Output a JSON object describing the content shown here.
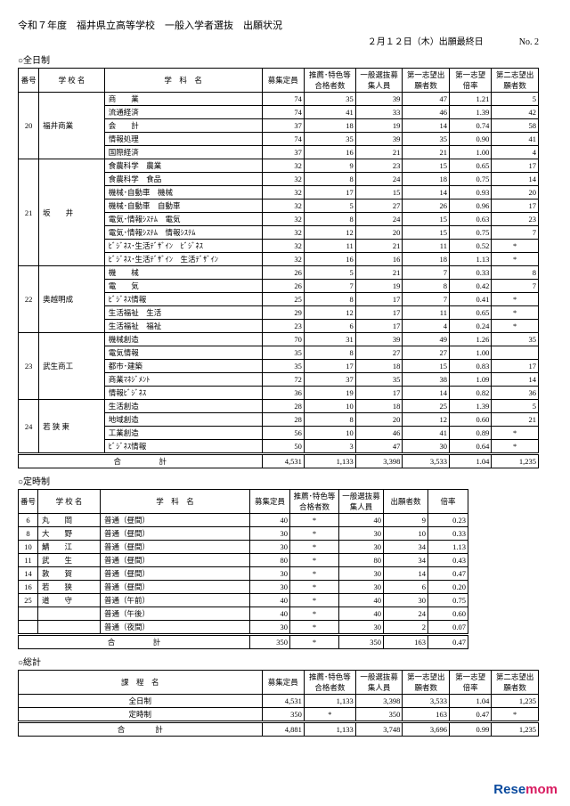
{
  "header": {
    "title": "令和７年度　福井県立高等学校　一般入学者選抜　出願状況",
    "date_line": "２月１２日（木）出願最終日　　　　No. 2"
  },
  "full_time": {
    "label": "○全日制",
    "head": [
      "番号",
      "学 校 名",
      "学　科　名",
      "募集定員",
      "推薦･特色等合格者数",
      "一般選抜募集人員",
      "第一志望出願者数",
      "第一志望倍率",
      "第二志望出願者数"
    ],
    "blocks": [
      {
        "no": "20",
        "school": "福井商業",
        "rows": [
          {
            "dept": "商　　業",
            "a": 74,
            "b": 35,
            "c": 39,
            "d": 47,
            "e": "1.21",
            "f": "5"
          },
          {
            "dept": "流通経済",
            "a": 74,
            "b": 41,
            "c": 33,
            "d": 46,
            "e": "1.39",
            "f": "42"
          },
          {
            "dept": "会　　計",
            "a": 37,
            "b": 18,
            "c": 19,
            "d": 14,
            "e": "0.74",
            "f": "58"
          },
          {
            "dept": "情報処理",
            "a": 74,
            "b": 35,
            "c": 39,
            "d": 35,
            "e": "0.90",
            "f": "41"
          },
          {
            "dept": "国際経済",
            "a": 37,
            "b": 16,
            "c": 21,
            "d": 21,
            "e": "1.00",
            "f": "4"
          }
        ]
      },
      {
        "no": "21",
        "school": "坂　　井",
        "rows": [
          {
            "dept": "食農科学　農業",
            "a": 32,
            "b": 9,
            "c": 23,
            "d": 15,
            "e": "0.65",
            "f": "17"
          },
          {
            "dept": "食農科学　食品",
            "a": 32,
            "b": 8,
            "c": 24,
            "d": 18,
            "e": "0.75",
            "f": "14"
          },
          {
            "dept": "機械･自動車　機械",
            "a": 32,
            "b": 17,
            "c": 15,
            "d": 14,
            "e": "0.93",
            "f": "20"
          },
          {
            "dept": "機械･自動車　自動車",
            "a": 32,
            "b": 5,
            "c": 27,
            "d": 26,
            "e": "0.96",
            "f": "17"
          },
          {
            "dept": "電気･情報ｼｽﾃﾑ　電気",
            "a": 32,
            "b": 8,
            "c": 24,
            "d": 15,
            "e": "0.63",
            "f": "23"
          },
          {
            "dept": "電気･情報ｼｽﾃﾑ　情報ｼｽﾃﾑ",
            "a": 32,
            "b": 12,
            "c": 20,
            "d": 15,
            "e": "0.75",
            "f": "7"
          },
          {
            "dept": "ﾋﾞｼﾞﾈｽ･生活ﾃﾞｻﾞｲﾝ　ﾋﾞｼﾞﾈｽ",
            "a": 32,
            "b": 11,
            "c": 21,
            "d": 11,
            "e": "0.52",
            "f": "*"
          },
          {
            "dept": "ﾋﾞｼﾞﾈｽ･生活ﾃﾞｻﾞｲﾝ　生活ﾃﾞｻﾞｲﾝ",
            "a": 32,
            "b": 16,
            "c": 16,
            "d": 18,
            "e": "1.13",
            "f": "*"
          }
        ]
      },
      {
        "no": "22",
        "school": "奥越明成",
        "rows": [
          {
            "dept": "機　　械",
            "a": 26,
            "b": 5,
            "c": 21,
            "d": 7,
            "e": "0.33",
            "f": "8"
          },
          {
            "dept": "電　　気",
            "a": 26,
            "b": 7,
            "c": 19,
            "d": 8,
            "e": "0.42",
            "f": "7"
          },
          {
            "dept": "ﾋﾞｼﾞﾈｽ情報",
            "a": 25,
            "b": 8,
            "c": 17,
            "d": 7,
            "e": "0.41",
            "f": "*"
          },
          {
            "dept": "生活福祉　生活",
            "a": 29,
            "b": 12,
            "c": 17,
            "d": 11,
            "e": "0.65",
            "f": "*"
          },
          {
            "dept": "生活福祉　福祉",
            "a": 23,
            "b": 6,
            "c": 17,
            "d": 4,
            "e": "0.24",
            "f": "*"
          }
        ]
      },
      {
        "no": "23",
        "school": "武生商工",
        "rows": [
          {
            "dept": "機械創造",
            "a": 70,
            "b": 31,
            "c": 39,
            "d": 49,
            "e": "1.26",
            "f": "35"
          },
          {
            "dept": "電気情報",
            "a": 35,
            "b": 8,
            "c": 27,
            "d": 27,
            "e": "1.00",
            "f": ""
          },
          {
            "dept": "都市･建築",
            "a": 35,
            "b": 17,
            "c": 18,
            "d": 15,
            "e": "0.83",
            "f": "17"
          },
          {
            "dept": "商業ﾏﾈｼﾞﾒﾝﾄ",
            "a": 72,
            "b": 37,
            "c": 35,
            "d": 38,
            "e": "1.09",
            "f": "14"
          },
          {
            "dept": "情報ﾋﾞｼﾞﾈｽ",
            "a": 36,
            "b": 19,
            "c": 17,
            "d": 14,
            "e": "0.82",
            "f": "36"
          }
        ]
      },
      {
        "no": "24",
        "school": "若 狭 東",
        "rows": [
          {
            "dept": "生活創造",
            "a": 28,
            "b": 10,
            "c": 18,
            "d": 25,
            "e": "1.39",
            "f": "5"
          },
          {
            "dept": "地域創造",
            "a": 28,
            "b": 8,
            "c": 20,
            "d": 12,
            "e": "0.60",
            "f": "21"
          },
          {
            "dept": "工業創造",
            "a": 56,
            "b": 10,
            "c": 46,
            "d": 41,
            "e": "0.89",
            "f": "*"
          },
          {
            "dept": "ﾋﾞｼﾞﾈｽ情報",
            "a": 50,
            "b": 3,
            "c": 47,
            "d": 30,
            "e": "0.64",
            "f": "*"
          }
        ]
      }
    ],
    "total": {
      "label": "合　　　　　計",
      "a": "4,531",
      "b": "1,133",
      "c": "3,398",
      "d": "3,533",
      "e": "1.04",
      "f": "1,235"
    }
  },
  "part_time": {
    "label": "○定時制",
    "head": [
      "番号",
      "学 校 名",
      "学　科　名",
      "募集定員",
      "推薦･特色等合格者数",
      "一般選抜募集人員",
      "出願者数",
      "倍率"
    ],
    "rows": [
      {
        "no": "6",
        "school": "丸　　岡",
        "dept": "普通（昼間）",
        "a": 40,
        "b": "*",
        "c": 40,
        "d": 9,
        "e": "0.23"
      },
      {
        "no": "8",
        "school": "大　　野",
        "dept": "普通（昼間）",
        "a": 30,
        "b": "*",
        "c": 30,
        "d": 10,
        "e": "0.33"
      },
      {
        "no": "10",
        "school": "鯖　　江",
        "dept": "普通（昼間）",
        "a": 30,
        "b": "*",
        "c": 30,
        "d": 34,
        "e": "1.13"
      },
      {
        "no": "11",
        "school": "武　　生",
        "dept": "普通（昼間）",
        "a": 80,
        "b": "*",
        "c": 80,
        "d": 34,
        "e": "0.43"
      },
      {
        "no": "14",
        "school": "敦　　賀",
        "dept": "普通（昼間）",
        "a": 30,
        "b": "*",
        "c": 30,
        "d": 14,
        "e": "0.47"
      },
      {
        "no": "16",
        "school": "若　　狭",
        "dept": "普通（昼間）",
        "a": 30,
        "b": "*",
        "c": 30,
        "d": 6,
        "e": "0.20"
      },
      {
        "no": "25",
        "school": "道　　守",
        "dept": "普通（午前）",
        "a": 40,
        "b": "*",
        "c": 40,
        "d": 30,
        "e": "0.75"
      },
      {
        "no": "",
        "school": "",
        "dept": "普通（午後）",
        "a": 40,
        "b": "*",
        "c": 40,
        "d": 24,
        "e": "0.60"
      },
      {
        "no": "",
        "school": "",
        "dept": "普通（夜間）",
        "a": 30,
        "b": "*",
        "c": 30,
        "d": 2,
        "e": "0.07"
      }
    ],
    "total": {
      "label": "合　　　　　計",
      "a": "350",
      "b": "*",
      "c": "350",
      "d": "163",
      "e": "0.47"
    }
  },
  "grand": {
    "label": "○総計",
    "head": [
      "課　程　名",
      "募集定員",
      "推薦･特色等合格者数",
      "一般選抜募集人員",
      "第一志望出願者数",
      "第一志望倍率",
      "第二志望出願者数"
    ],
    "rows": [
      {
        "name": "全日制",
        "a": "4,531",
        "b": "1,133",
        "c": "3,398",
        "d": "3,533",
        "e": "1.04",
        "f": "1,235"
      },
      {
        "name": "定時制",
        "a": "350",
        "b": "*",
        "c": "350",
        "d": "163",
        "e": "0.47",
        "f": "*"
      }
    ],
    "total": {
      "label": "合　　　　計",
      "a": "4,881",
      "b": "1,133",
      "c": "3,748",
      "d": "3,696",
      "e": "0.99",
      "f": "1,235"
    }
  },
  "watermark": {
    "left": "Rese",
    "right": "mom"
  }
}
